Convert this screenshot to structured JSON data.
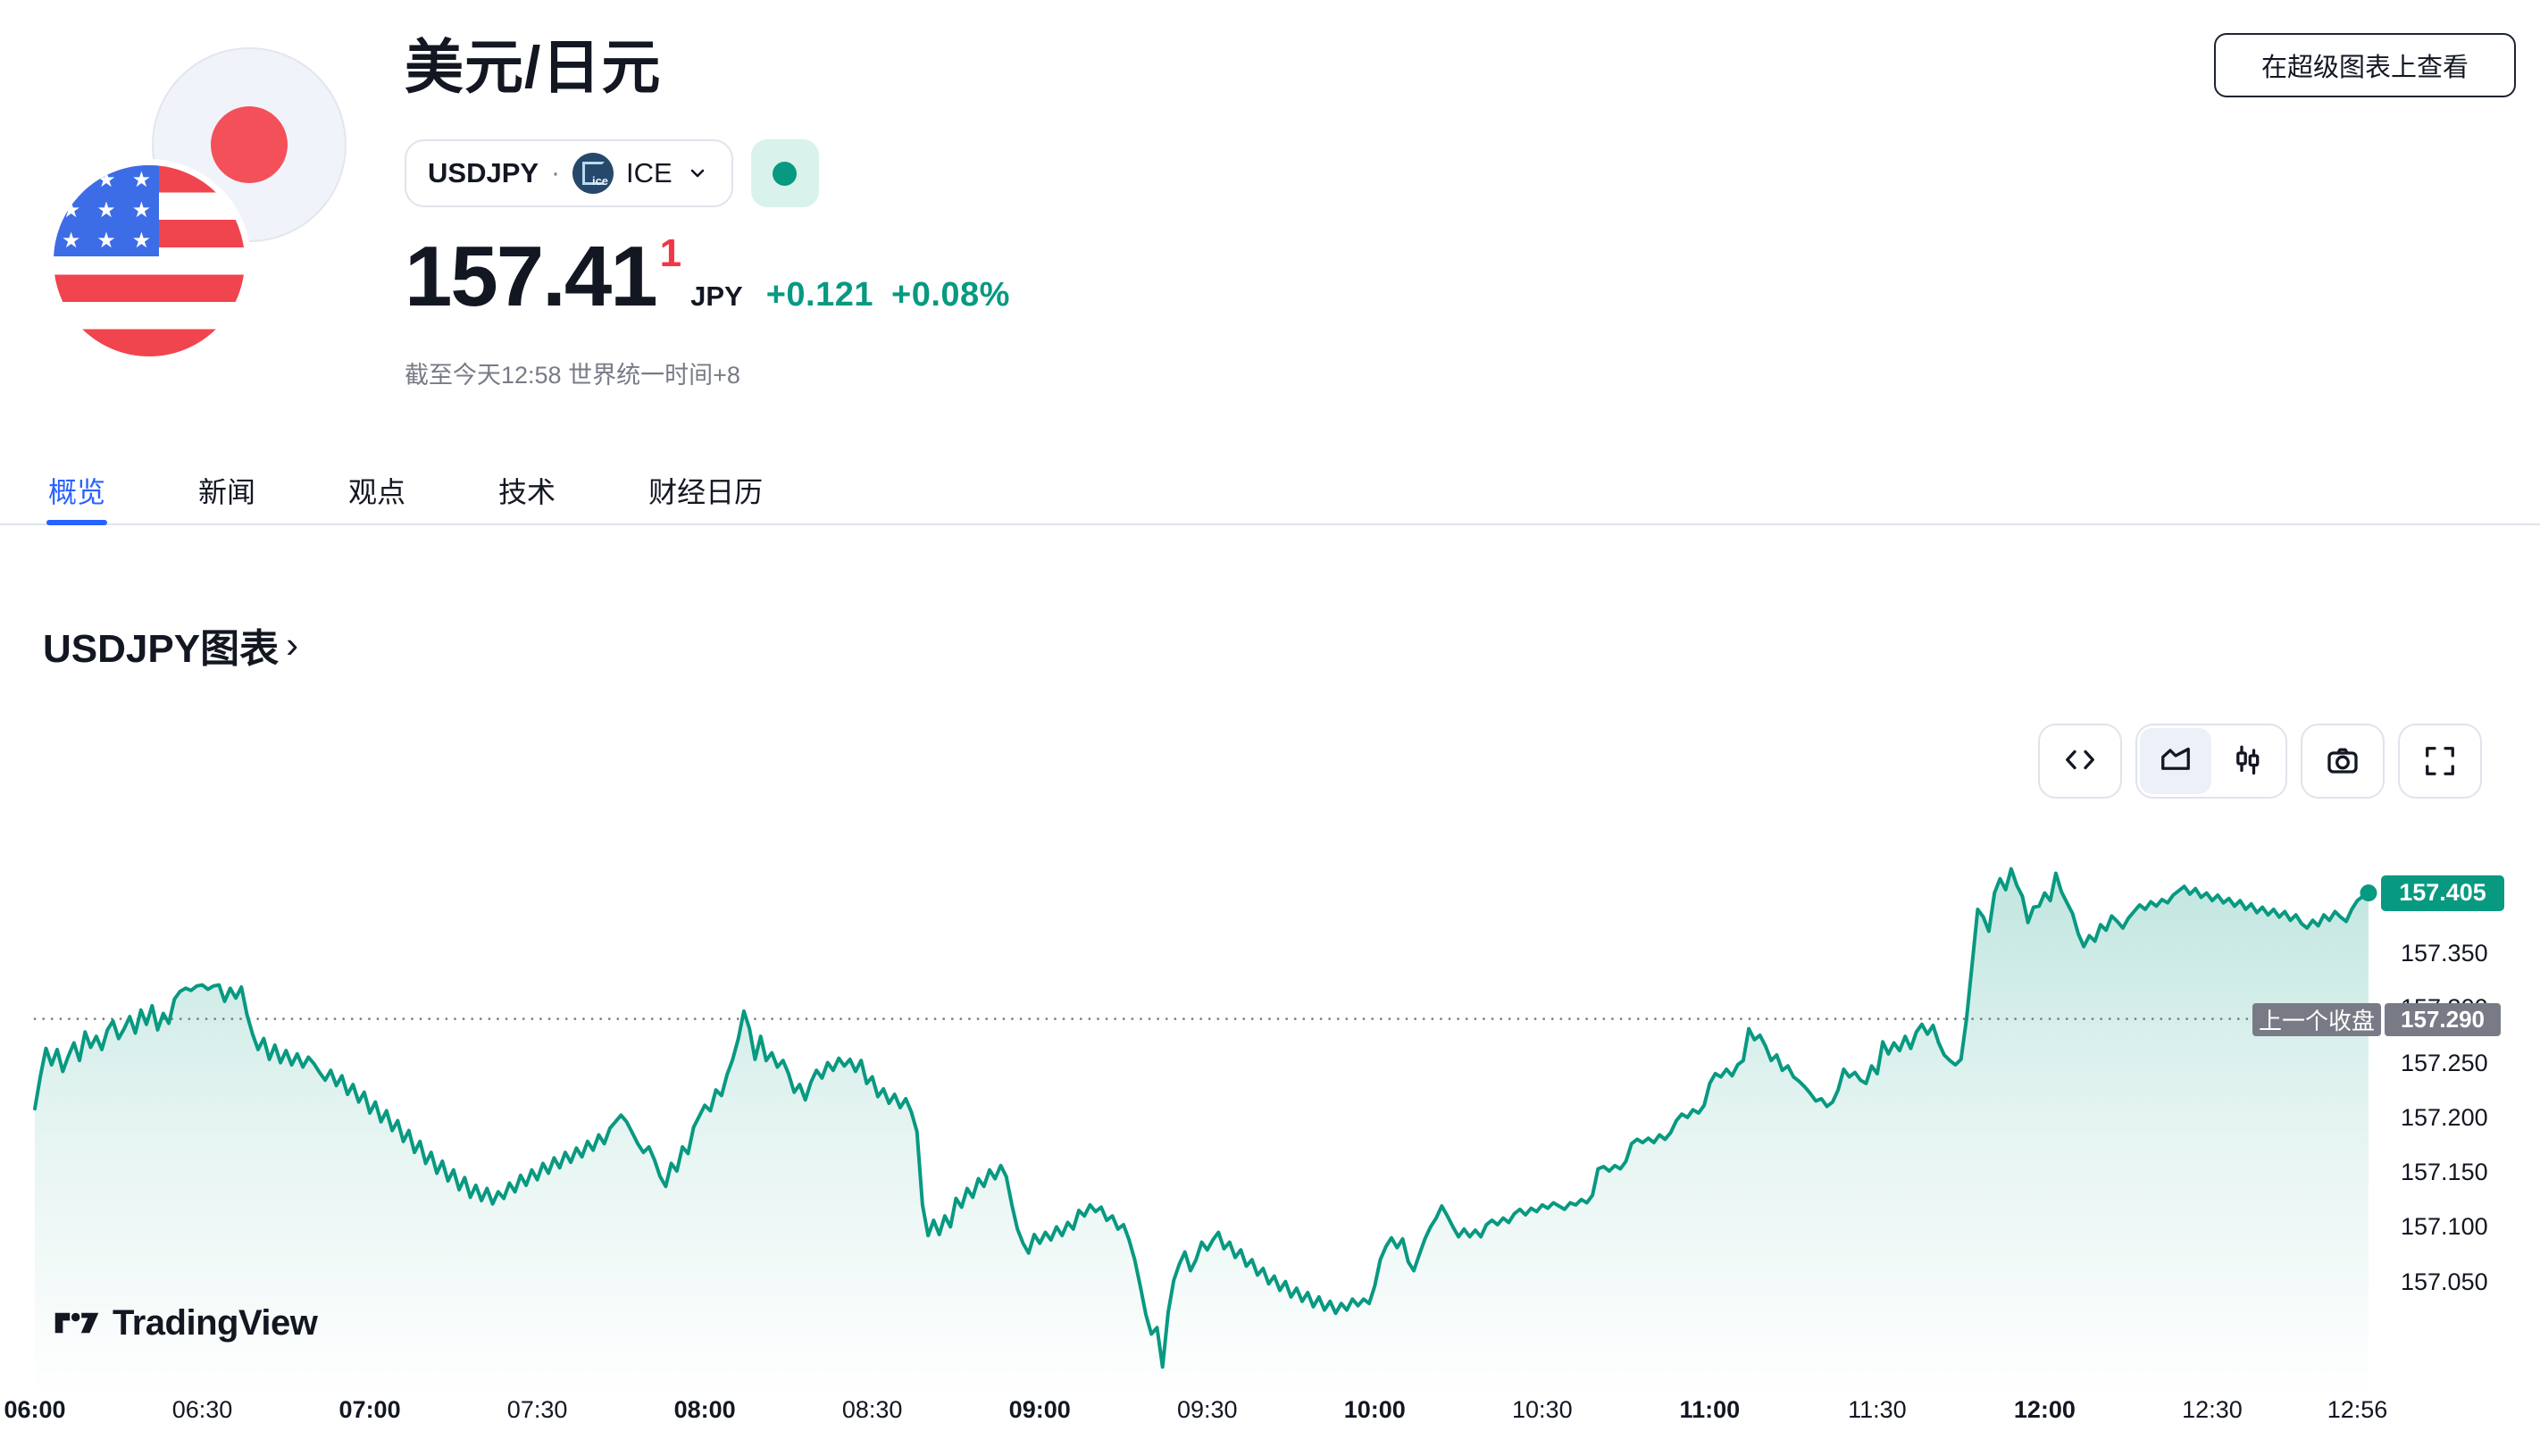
{
  "header": {
    "title": "美元/日元",
    "symbol": "USDJPY",
    "separator": "·",
    "exchange": "ICE",
    "market_status": "open",
    "price": "157.41",
    "price_sup": "1",
    "currency": "JPY",
    "change_abs": "+0.121",
    "change_pct": "+0.08%",
    "as_of": "截至今天12:58 世界统一时间+8",
    "supercharts_button": "在超级图表上查看"
  },
  "tabs": {
    "items": [
      {
        "label": "概览",
        "active": true
      },
      {
        "label": "新闻",
        "active": false
      },
      {
        "label": "观点",
        "active": false
      },
      {
        "label": "技术",
        "active": false
      },
      {
        "label": "财经日历",
        "active": false
      }
    ]
  },
  "section": {
    "title": "USDJPY图表",
    "chevron": "›"
  },
  "toolbar": {
    "buttons": [
      "embed-code-icon",
      "area-chart-icon",
      "candlestick-icon",
      "camera-icon",
      "fullscreen-icon"
    ],
    "active_chart_type": "area"
  },
  "chart": {
    "watermark": "TradingView",
    "current_price": {
      "value": "157.405",
      "badge_bg": "#089981"
    },
    "prev_close": {
      "label": "上一个收盘",
      "value": "157.290",
      "badge_bg": "#787b86"
    }
  },
  "colors": {
    "accent_blue": "#2962ff",
    "up_green": "#089981",
    "sup_red": "#f23645",
    "text_dark": "#131722",
    "text_grey": "#787b86",
    "border_grey": "#e0e3eb",
    "mint_badge_bg": "#d9f2ec"
  },
  "chart_data": {
    "type": "area",
    "title": "USDJPY图表",
    "symbol": "USDJPY",
    "xlabel": "",
    "ylabel": "",
    "grid": false,
    "legend_position": "none",
    "x_start": "06:00",
    "x_end": "12:58",
    "interval_minutes": 1,
    "prev_close": 157.29,
    "last": 157.405,
    "high": 157.427,
    "low": 156.972,
    "ylim": [
      156.96,
      157.47
    ],
    "y_ticks": [
      157.35,
      157.3,
      157.25,
      157.2,
      157.15,
      157.1,
      157.05
    ],
    "x_ticks": [
      {
        "t": 0,
        "label": "06:00",
        "bold": true
      },
      {
        "t": 30,
        "label": "06:30",
        "bold": false
      },
      {
        "t": 60,
        "label": "07:00",
        "bold": true
      },
      {
        "t": 90,
        "label": "07:30",
        "bold": false
      },
      {
        "t": 120,
        "label": "08:00",
        "bold": true
      },
      {
        "t": 150,
        "label": "08:30",
        "bold": false
      },
      {
        "t": 180,
        "label": "09:00",
        "bold": true
      },
      {
        "t": 210,
        "label": "09:30",
        "bold": false
      },
      {
        "t": 240,
        "label": "10:00",
        "bold": true
      },
      {
        "t": 270,
        "label": "10:30",
        "bold": false
      },
      {
        "t": 300,
        "label": "11:00",
        "bold": true
      },
      {
        "t": 330,
        "label": "11:30",
        "bold": false
      },
      {
        "t": 360,
        "label": "12:00",
        "bold": true
      },
      {
        "t": 390,
        "label": "12:30",
        "bold": false
      },
      {
        "t": 416,
        "label": "12:56",
        "bold": false
      }
    ],
    "prices": [
      157.208,
      157.238,
      157.263,
      157.248,
      157.262,
      157.242,
      157.256,
      157.268,
      157.252,
      157.278,
      157.264,
      157.274,
      157.262,
      157.28,
      157.288,
      157.272,
      157.281,
      157.292,
      157.277,
      157.298,
      157.285,
      157.302,
      157.28,
      157.295,
      157.286,
      157.308,
      157.315,
      157.318,
      157.316,
      157.32,
      157.321,
      157.317,
      157.32,
      157.321,
      157.306,
      157.318,
      157.309,
      157.319,
      157.294,
      157.276,
      157.262,
      157.272,
      157.253,
      157.266,
      157.25,
      157.261,
      157.248,
      157.258,
      157.246,
      157.255,
      157.249,
      157.241,
      157.234,
      157.243,
      157.229,
      157.238,
      157.221,
      157.23,
      157.214,
      157.223,
      157.204,
      157.214,
      157.196,
      157.206,
      157.188,
      157.197,
      157.178,
      157.188,
      157.168,
      157.178,
      157.158,
      157.168,
      157.149,
      157.16,
      157.142,
      157.152,
      157.134,
      157.145,
      157.127,
      157.138,
      157.124,
      157.135,
      157.121,
      157.132,
      157.126,
      157.14,
      157.132,
      157.147,
      157.138,
      157.152,
      157.143,
      157.158,
      157.149,
      157.163,
      157.154,
      157.168,
      157.159,
      157.172,
      157.164,
      157.178,
      157.17,
      157.184,
      157.176,
      157.19,
      157.196,
      157.202,
      157.196,
      157.186,
      157.176,
      157.168,
      157.173,
      157.161,
      157.146,
      157.137,
      157.158,
      157.151,
      157.173,
      157.167,
      157.191,
      157.201,
      157.211,
      157.206,
      157.225,
      157.22,
      157.239,
      157.253,
      157.272,
      157.297,
      157.281,
      157.253,
      157.274,
      157.252,
      157.259,
      157.246,
      157.252,
      157.24,
      157.223,
      157.23,
      157.216,
      157.232,
      157.243,
      157.236,
      157.25,
      157.243,
      157.254,
      157.247,
      157.253,
      157.242,
      157.252,
      157.231,
      157.237,
      157.219,
      157.226,
      157.213,
      157.221,
      157.209,
      157.217,
      157.205,
      157.187,
      157.12,
      157.092,
      157.106,
      157.093,
      157.11,
      157.1,
      157.126,
      157.118,
      157.135,
      157.127,
      157.144,
      157.137,
      157.152,
      157.144,
      157.156,
      157.146,
      157.12,
      157.098,
      157.085,
      157.076,
      157.093,
      157.085,
      157.095,
      157.088,
      157.1,
      157.092,
      157.104,
      157.098,
      157.115,
      157.11,
      157.12,
      157.114,
      157.118,
      157.106,
      157.11,
      157.098,
      157.102,
      157.088,
      157.07,
      157.046,
      157.02,
      157.002,
      157.008,
      156.972,
      157.022,
      157.051,
      157.066,
      157.077,
      157.06,
      157.07,
      157.086,
      157.079,
      157.088,
      157.095,
      157.08,
      157.086,
      157.072,
      157.079,
      157.064,
      157.07,
      157.056,
      157.062,
      157.048,
      157.055,
      157.042,
      157.05,
      157.036,
      157.044,
      157.032,
      157.04,
      157.027,
      157.036,
      157.024,
      157.032,
      157.021,
      157.03,
      157.024,
      157.034,
      157.028,
      157.034,
      157.03,
      157.046,
      157.07,
      157.082,
      157.09,
      157.081,
      157.089,
      157.068,
      157.06,
      157.075,
      157.089,
      157.1,
      157.108,
      157.119,
      157.11,
      157.1,
      157.091,
      157.098,
      157.091,
      157.097,
      157.091,
      157.102,
      157.106,
      157.102,
      157.108,
      157.104,
      157.112,
      157.116,
      157.111,
      157.117,
      157.114,
      157.12,
      157.117,
      157.122,
      157.119,
      157.116,
      157.122,
      157.12,
      157.125,
      157.122,
      157.129,
      157.153,
      157.155,
      157.151,
      157.156,
      157.153,
      157.16,
      157.176,
      157.18,
      157.177,
      157.181,
      157.177,
      157.184,
      157.18,
      157.186,
      157.197,
      157.203,
      157.2,
      157.207,
      157.204,
      157.211,
      157.231,
      157.24,
      157.237,
      157.244,
      157.238,
      157.248,
      157.252,
      157.281,
      157.271,
      157.275,
      157.265,
      157.252,
      157.257,
      157.243,
      157.247,
      157.237,
      157.233,
      157.228,
      157.222,
      157.215,
      157.217,
      157.21,
      157.214,
      157.225,
      157.244,
      157.237,
      157.241,
      157.234,
      157.231,
      157.247,
      157.24,
      157.269,
      157.258,
      157.268,
      157.261,
      157.274,
      157.263,
      157.278,
      157.285,
      157.276,
      157.284,
      157.268,
      157.257,
      157.252,
      157.248,
      157.253,
      157.29,
      157.34,
      157.39,
      157.383,
      157.37,
      157.405,
      157.418,
      157.408,
      157.427,
      157.412,
      157.402,
      157.378,
      157.392,
      157.393,
      157.405,
      157.398,
      157.423,
      157.406,
      157.396,
      157.386,
      157.368,
      157.356,
      157.366,
      157.361,
      157.376,
      157.371,
      157.384,
      157.379,
      157.373,
      157.382,
      157.388,
      157.394,
      157.39,
      157.397,
      157.393,
      157.399,
      157.396,
      157.403,
      157.407,
      157.411,
      157.404,
      157.409,
      157.401,
      157.405,
      157.398,
      157.403,
      157.396,
      157.4,
      157.393,
      157.398,
      157.39,
      157.395,
      157.387,
      157.392,
      157.385,
      157.39,
      157.383,
      157.388,
      157.38,
      157.385,
      157.377,
      157.373,
      157.38,
      157.375,
      157.385,
      157.38,
      157.388,
      157.383,
      157.379,
      157.39,
      157.398,
      157.402,
      157.405
    ]
  }
}
